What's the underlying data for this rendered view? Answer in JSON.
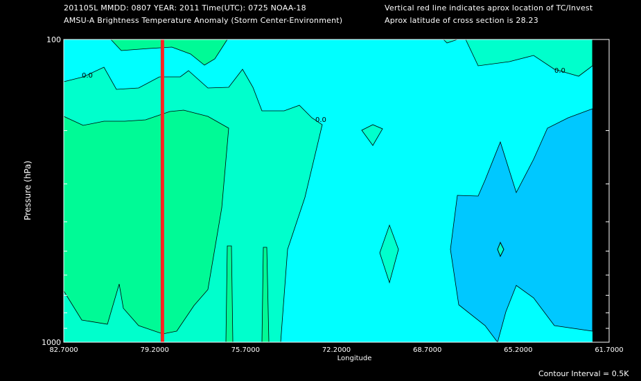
{
  "header": {
    "line1": "201105L  MMDD: 0807 YEAR: 2011 Time(UTC): 0725 NOAA-18",
    "line2": "AMSU-A Brightness Temperature Anomaly (Storm Center-Environment)",
    "note1": "Vertical red line indicates aprox location of TC/Invest",
    "note2": "Aprox latitude of cross section is 28.23"
  },
  "footer": {
    "contour_interval": "Contour Interval = 0.5K"
  },
  "chart_data": {
    "type": "contour",
    "xlabel": "Longitude",
    "ylabel": "Pressure (hPa)",
    "xlim": [
      82.7,
      61.7
    ],
    "ylim": [
      1000,
      100
    ],
    "y_scale": "log",
    "x_ticks": [
      "82.7000",
      "79.2000",
      "75.7000",
      "72.2000",
      "68.7000",
      "65.2000",
      "61.7000"
    ],
    "y_ticks": [
      "100",
      "1000"
    ],
    "storm_longitude": 78.9,
    "contour_labels": [
      "0.0",
      "0.0",
      "0.0"
    ],
    "colors": {
      "background": "#000000",
      "level_neg05": "#00c8ff",
      "level_0": "#00ffff",
      "level_05": "#00ffcc",
      "level_1": "#00fa96",
      "storm_line": "#ff2222"
    }
  }
}
